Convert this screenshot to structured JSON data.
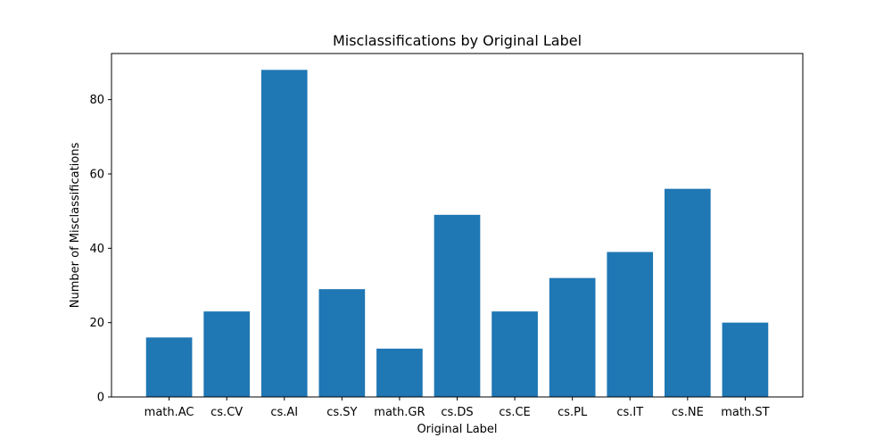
{
  "chart_data": {
    "type": "bar",
    "title": "Misclassifications by Original Label",
    "xlabel": "Original Label",
    "ylabel": "Number of Misclassifications",
    "categories": [
      "math.AC",
      "cs.CV",
      "cs.AI",
      "cs.SY",
      "math.GR",
      "cs.DS",
      "cs.CE",
      "cs.PL",
      "cs.IT",
      "cs.NE",
      "math.ST"
    ],
    "values": [
      16,
      23,
      88,
      29,
      13,
      49,
      23,
      32,
      39,
      56,
      20
    ],
    "ylim": [
      0,
      92.4
    ],
    "yticks": [
      0,
      20,
      40,
      60,
      80
    ],
    "bar_color": "#1f77b4",
    "grid": false,
    "legend": "none"
  }
}
